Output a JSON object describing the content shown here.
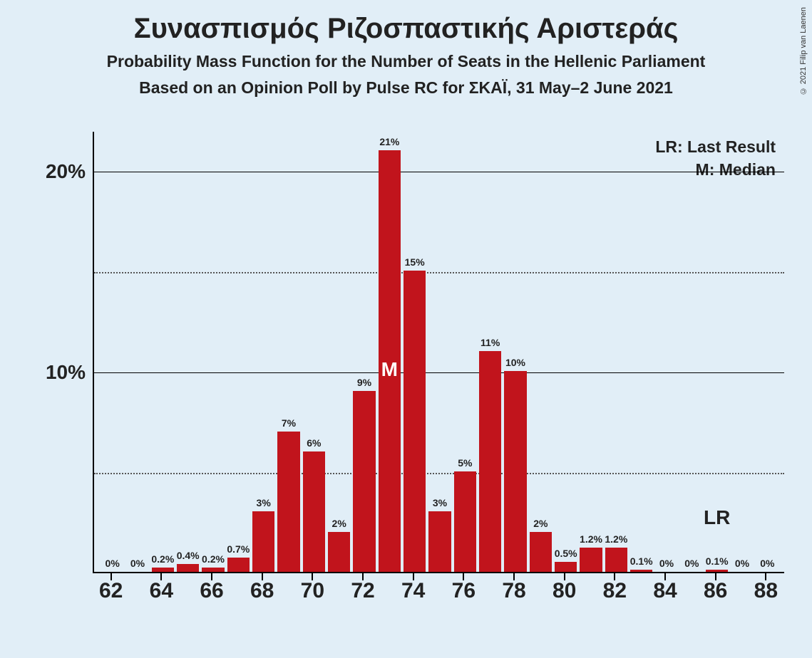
{
  "copyright": "© 2021 Filip van Laenen",
  "title": "Συνασπισμός Ριζοσπαστικής Αριστεράς",
  "subtitle1": "Probability Mass Function for the Number of Seats in the Hellenic Parliament",
  "subtitle2": "Based on an Opinion Poll by Pulse RC for ΣΚΑΪ, 31 May–2 June 2021",
  "legend": {
    "lr": "LR: Last Result",
    "m": "M: Median",
    "lr_short": "LR"
  },
  "chart": {
    "type": "bar",
    "background_color": "#e1eef7",
    "bar_color": "#c1141c",
    "text_color": "#222222",
    "axis_color": "#000000",
    "grid_solid_color": "#000000",
    "grid_dotted_color": "#555555",
    "ylim_max": 22,
    "y_major_ticks": [
      10,
      20
    ],
    "y_minor_ticks": [
      5,
      15
    ],
    "y_tick_labels": {
      "10": "10%",
      "20": "20%"
    },
    "x_range": [
      62,
      88
    ],
    "x_tick_step": 2,
    "bar_relative_width": 0.88,
    "median_x": 73,
    "median_label": "M",
    "lr_x": 86,
    "title_fontsize": 40,
    "subtitle_fontsize": 23,
    "axis_label_fontsize": 28,
    "bar_label_fontsize": 14,
    "xtick_fontsize": 30,
    "bars": [
      {
        "x": 62,
        "v": 0,
        "label": "0%"
      },
      {
        "x": 63,
        "v": 0,
        "label": "0%"
      },
      {
        "x": 64,
        "v": 0.2,
        "label": "0.2%"
      },
      {
        "x": 65,
        "v": 0.4,
        "label": "0.4%"
      },
      {
        "x": 66,
        "v": 0.2,
        "label": "0.2%"
      },
      {
        "x": 67,
        "v": 0.7,
        "label": "0.7%"
      },
      {
        "x": 68,
        "v": 3,
        "label": "3%"
      },
      {
        "x": 69,
        "v": 7,
        "label": "7%"
      },
      {
        "x": 70,
        "v": 6,
        "label": "6%"
      },
      {
        "x": 71,
        "v": 2,
        "label": "2%"
      },
      {
        "x": 72,
        "v": 9,
        "label": "9%"
      },
      {
        "x": 73,
        "v": 21,
        "label": "21%"
      },
      {
        "x": 74,
        "v": 15,
        "label": "15%"
      },
      {
        "x": 75,
        "v": 3,
        "label": "3%"
      },
      {
        "x": 76,
        "v": 5,
        "label": "5%"
      },
      {
        "x": 77,
        "v": 11,
        "label": "11%"
      },
      {
        "x": 78,
        "v": 10,
        "label": "10%"
      },
      {
        "x": 79,
        "v": 2,
        "label": "2%"
      },
      {
        "x": 80,
        "v": 0.5,
        "label": "0.5%"
      },
      {
        "x": 81,
        "v": 1.2,
        "label": "1.2%"
      },
      {
        "x": 82,
        "v": 1.2,
        "label": "1.2%"
      },
      {
        "x": 83,
        "v": 0.1,
        "label": "0.1%"
      },
      {
        "x": 84,
        "v": 0,
        "label": "0%"
      },
      {
        "x": 85,
        "v": 0,
        "label": "0%"
      },
      {
        "x": 86,
        "v": 0.1,
        "label": "0.1%"
      },
      {
        "x": 87,
        "v": 0,
        "label": "0%"
      },
      {
        "x": 88,
        "v": 0,
        "label": "0%"
      }
    ]
  }
}
